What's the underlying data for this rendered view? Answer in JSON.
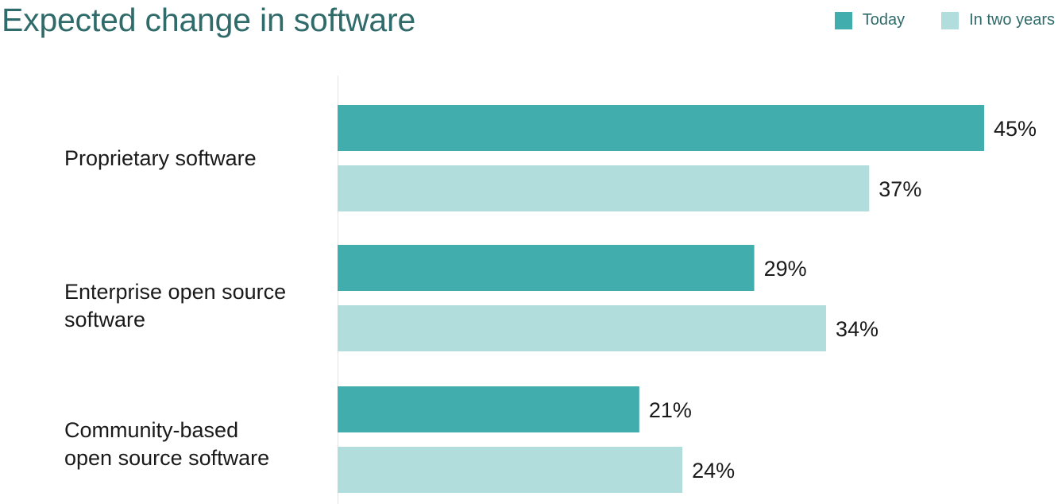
{
  "chart_data": {
    "type": "bar",
    "orientation": "horizontal",
    "title": "Expected change in software",
    "xlabel": "",
    "ylabel": "",
    "xlim": [
      0,
      50
    ],
    "grid": false,
    "legend_position": "top-right",
    "categories": [
      "Proprietary software",
      "Enterprise open source software",
      "Community-based open source software"
    ],
    "category_display": [
      "Proprietary software",
      "Enterprise open source\nsoftware",
      "Community-based\nopen source software"
    ],
    "series": [
      {
        "name": "Today",
        "color": "#42adad",
        "values": [
          45,
          29,
          21
        ],
        "labels": [
          "45%",
          "29%",
          "21%"
        ]
      },
      {
        "name": "In two years",
        "color": "#b2dddd",
        "values": [
          37,
          34,
          24
        ],
        "labels": [
          "37%",
          "34%",
          "24%"
        ]
      }
    ]
  }
}
